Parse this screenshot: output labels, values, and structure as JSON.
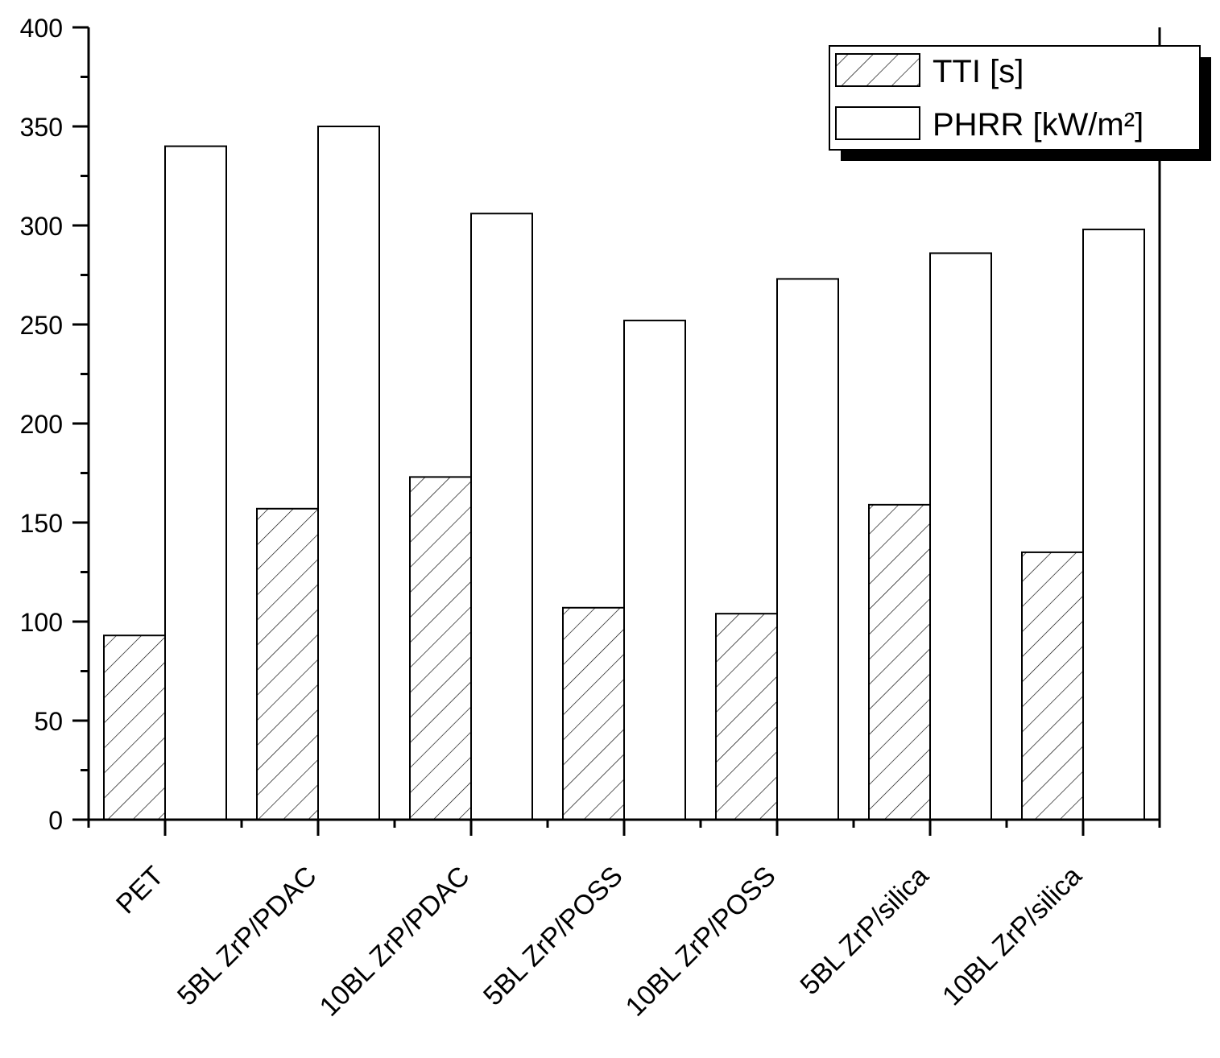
{
  "chart_data": {
    "type": "bar",
    "categories": [
      "PET",
      "5BL ZrP/PDAC",
      "10BL ZrP/PDAC",
      "5BL ZrP/POSS",
      "10BL ZrP/POSS",
      "5BL ZrP/silica",
      "10BL ZrP/silica"
    ],
    "series": [
      {
        "name": "TTI [s]",
        "color": "#ffffff",
        "hatch": true,
        "values": [
          93,
          157,
          173,
          107,
          104,
          159,
          135
        ]
      },
      {
        "name": "PHRR [kW/m²]",
        "color": "#ffffff",
        "hatch": false,
        "values": [
          340,
          350,
          306,
          252,
          273,
          286,
          298
        ]
      }
    ],
    "ylim": [
      0,
      400
    ],
    "yticks": [
      0,
      50,
      100,
      150,
      200,
      250,
      300,
      350,
      400
    ],
    "legend": "upper right"
  }
}
